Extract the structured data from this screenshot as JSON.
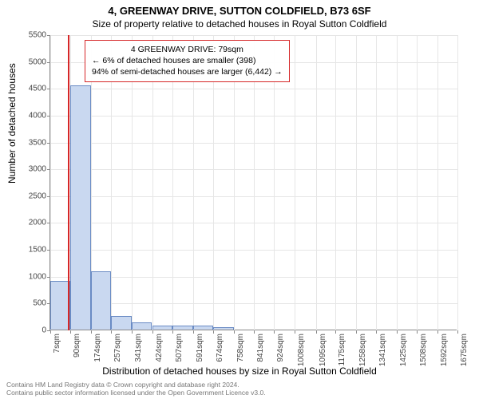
{
  "titles": {
    "main": "4, GREENWAY DRIVE, SUTTON COLDFIELD, B73 6SF",
    "sub": "Size of property relative to detached houses in Royal Sutton Coldfield"
  },
  "axes": {
    "ylabel": "Number of detached houses",
    "xlabel": "Distribution of detached houses by size in Royal Sutton Coldfield",
    "ylim_max": 5500,
    "ytick_step": 500,
    "grid_color": "#e6e6e6",
    "axis_color": "#888888",
    "tick_fontsize": 10,
    "label_fontsize": 12
  },
  "histogram": {
    "type": "histogram",
    "bar_fill": "#c9d8f0",
    "bar_stroke": "#6a8bc4",
    "bin_edges_sqm": [
      7,
      90,
      174,
      257,
      341,
      424,
      507,
      591,
      674,
      758,
      841,
      924,
      1008,
      1095,
      1175,
      1258,
      1341,
      1425,
      1508,
      1592,
      1675
    ],
    "counts": [
      900,
      4550,
      1090,
      260,
      140,
      80,
      70,
      70,
      40,
      0,
      0,
      0,
      0,
      0,
      0,
      0,
      0,
      0,
      0,
      0
    ]
  },
  "marker": {
    "value_sqm": 79,
    "color": "#d62728"
  },
  "annotation": {
    "border_color": "#d62728",
    "lines": {
      "l1": "4 GREENWAY DRIVE: 79sqm",
      "l2": "← 6% of detached houses are smaller (398)",
      "l3": "94% of semi-detached houses are larger (6,442) →"
    }
  },
  "footer": {
    "line1": "Contains HM Land Registry data © Crown copyright and database right 2024.",
    "line2": "Contains public sector information licensed under the Open Government Licence v3.0."
  },
  "colors": {
    "background": "#ffffff",
    "text": "#333333",
    "footer_text": "#777777"
  }
}
